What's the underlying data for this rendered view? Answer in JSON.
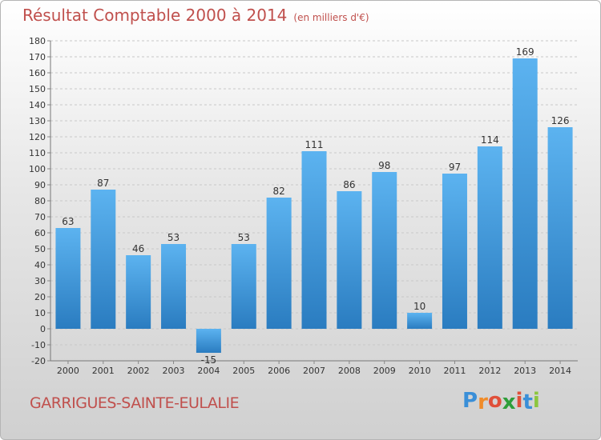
{
  "title": "Résultat Comptable 2000 à 2014",
  "subtitle": "(en milliers d'€)",
  "footer": {
    "label": "GARRIGUES-SAINTE-EULALIE"
  },
  "logo": {
    "text": "Proxiti",
    "letters": [
      "P",
      "r",
      "o",
      "x",
      "i",
      "t",
      "i"
    ],
    "colors": [
      "#3a8fd8",
      "#f08c2a",
      "#e0503a",
      "#2e9e3a",
      "#e0503a",
      "#3a8fd8",
      "#8cc63f"
    ]
  },
  "colors": {
    "bar": "#4aa3e6",
    "bar_dark": "#2f80c4",
    "text_accent": "#c0504d",
    "grid": "#c8c8c8"
  },
  "chart_data": {
    "type": "bar",
    "categories": [
      "2000",
      "2001",
      "2002",
      "2003",
      "2004",
      "2005",
      "2006",
      "2007",
      "2008",
      "2009",
      "2010",
      "2011",
      "2012",
      "2013",
      "2014"
    ],
    "values": [
      63,
      87,
      46,
      53,
      -15,
      53,
      82,
      111,
      86,
      98,
      10,
      97,
      114,
      169,
      126
    ],
    "ylim": [
      -20,
      180
    ],
    "yticks": [
      -20,
      -10,
      0,
      10,
      20,
      30,
      40,
      50,
      60,
      70,
      80,
      90,
      100,
      110,
      120,
      130,
      140,
      150,
      160,
      170,
      180
    ],
    "grid": true,
    "xlabel": "",
    "ylabel": ""
  }
}
